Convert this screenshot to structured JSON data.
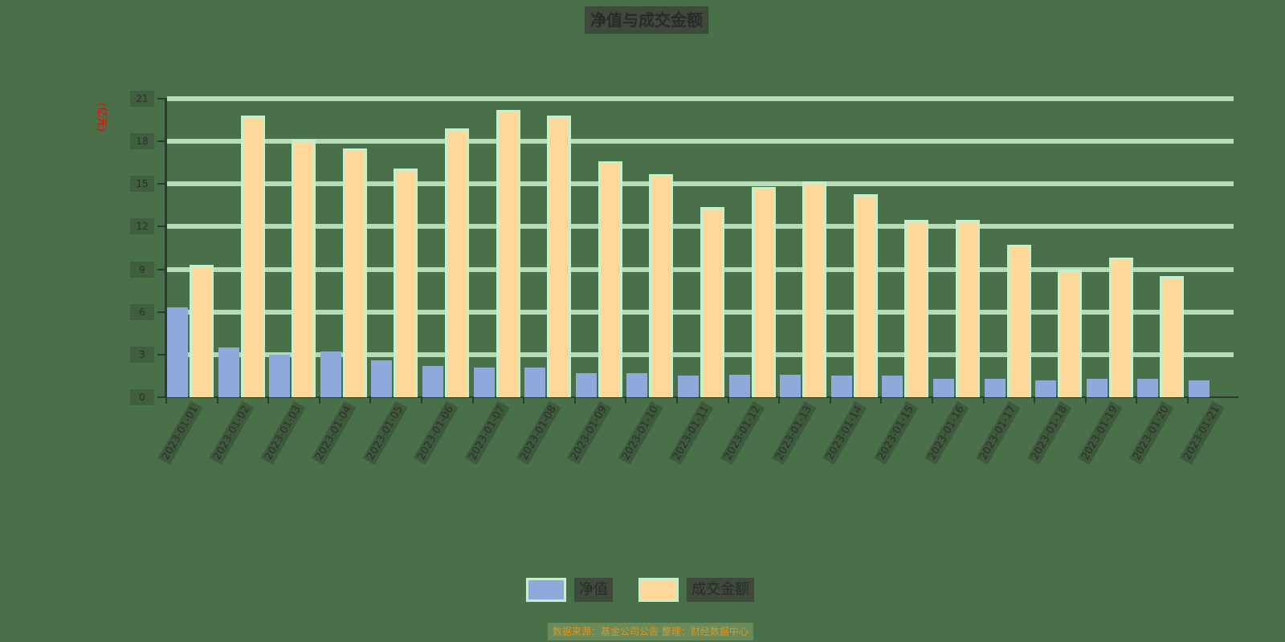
{
  "chart": {
    "title": "净值与成交金额",
    "y_unit": "(亿元)",
    "footer": "数据来源：基金公司公告 整理：财经数据中心",
    "legend": [
      {
        "name": "净值",
        "color": "#8eaadb"
      },
      {
        "name": "成交金额",
        "color": "#fed898"
      }
    ],
    "colors": {
      "background": "#4a7049",
      "grid": "#b5dbb7",
      "bar_border": "#c6efce",
      "unit_label": "#ff0000",
      "footer_text": "#e0961c"
    }
  },
  "chart_data": {
    "type": "bar",
    "title": "净值与成交金额",
    "xlabel": "",
    "ylabel": "(亿元)",
    "ylim": [
      0,
      21
    ],
    "yticks": [
      0,
      3,
      6,
      9,
      12,
      15,
      18,
      21
    ],
    "grid": true,
    "legend_position": "bottom",
    "categories": [
      "2023-01-01",
      "2023-01-02",
      "2023-01-03",
      "2023-01-04",
      "2023-01-05",
      "2023-01-06",
      "2023-01-07",
      "2023-01-08",
      "2023-01-09",
      "2023-01-10",
      "2023-01-11",
      "2023-01-12",
      "2023-01-13",
      "2023-01-14",
      "2023-01-15",
      "2023-01-16",
      "2023-01-17",
      "2023-01-18",
      "2023-01-19",
      "2023-01-20",
      "2023-01-21"
    ],
    "series": [
      {
        "name": "净值",
        "values": [
          6.3,
          3.5,
          3.0,
          3.2,
          2.6,
          2.2,
          2.1,
          2.1,
          1.7,
          1.7,
          1.5,
          1.6,
          1.6,
          1.5,
          1.5,
          1.3,
          1.3,
          1.2,
          1.3,
          1.3,
          1.2
        ]
      },
      {
        "name": "成交金额",
        "values": [
          9.3,
          19.8,
          18.1,
          17.5,
          16.1,
          18.9,
          20.2,
          19.8,
          16.6,
          15.7,
          13.4,
          14.8,
          15.2,
          14.3,
          12.5,
          12.5,
          10.7,
          9.0,
          9.8,
          8.5,
          null
        ]
      }
    ]
  }
}
